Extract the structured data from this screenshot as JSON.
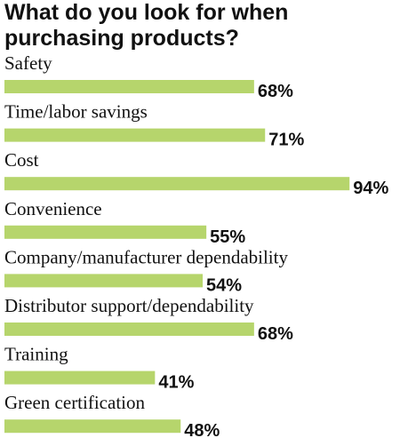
{
  "chart_data": {
    "type": "bar",
    "orientation": "horizontal",
    "title": "What do you look for when purchasing products?",
    "categories": [
      "Safety",
      "Time/labor savings",
      "Cost",
      "Convenience",
      "Company/manufacturer dependability",
      "Distributor support/dependability",
      "Training",
      "Green certification"
    ],
    "values": [
      68,
      71,
      94,
      55,
      54,
      68,
      41,
      48
    ],
    "value_labels": [
      "68%",
      "71%",
      "94%",
      "55%",
      "54%",
      "68%",
      "41%",
      "48%"
    ],
    "color": "#b6d56c"
  }
}
